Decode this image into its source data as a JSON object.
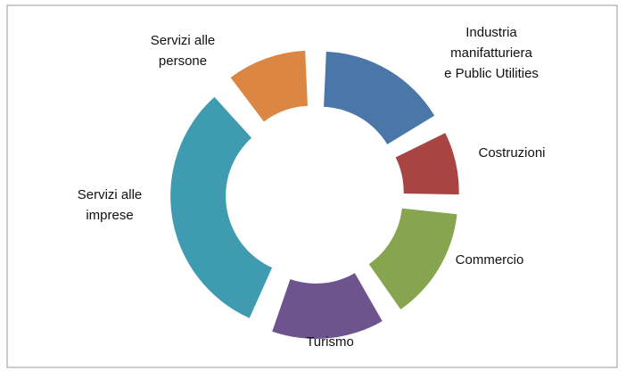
{
  "chart_data": {
    "type": "donut",
    "categories": [
      [
        "Industria",
        "manifatturiera",
        "e Public Utilities"
      ],
      [
        "Costruzioni"
      ],
      [
        "Commercio"
      ],
      [
        "Turismo"
      ],
      [
        "Servizi alle",
        "imprese"
      ],
      [
        "Servizi alle",
        "persone"
      ]
    ],
    "values": [
      17,
      9,
      15,
      15,
      33,
      11
    ],
    "colors": [
      "#4a76a8",
      "#a84442",
      "#87a54f",
      "#6e548e",
      "#3f9bb0",
      "#dc8643"
    ]
  }
}
